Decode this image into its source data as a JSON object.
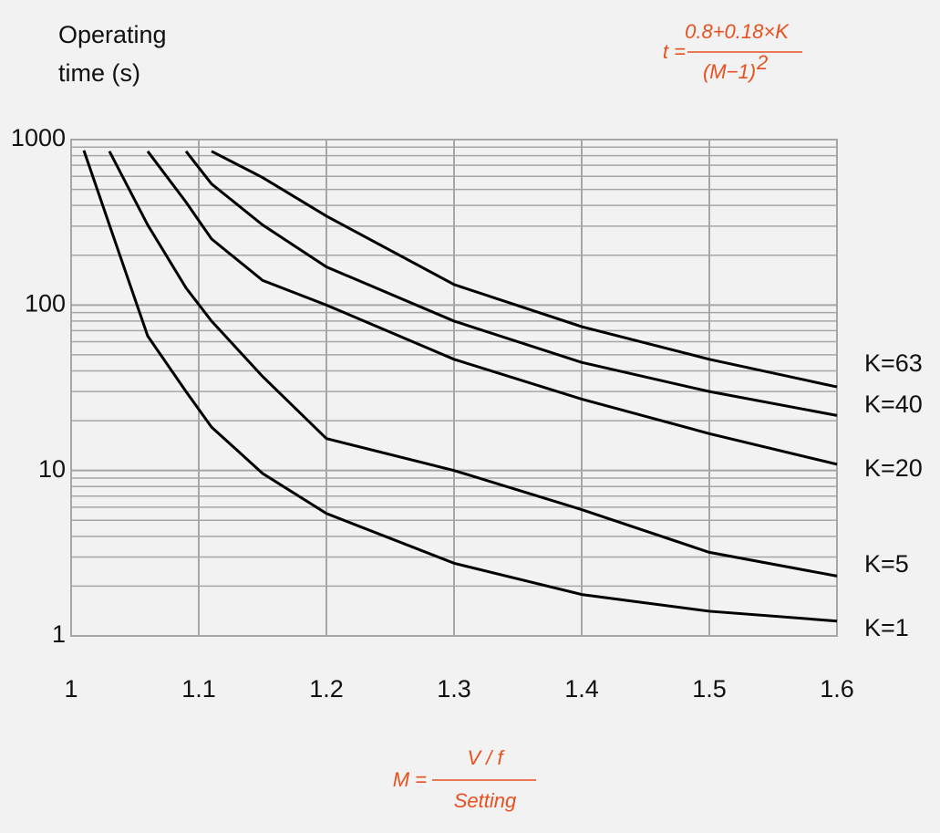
{
  "chart_data": {
    "type": "line",
    "ylabel": [
      "Operating",
      "time (s)"
    ],
    "formula": {
      "lhs": "t =",
      "numerator": "0.8+0.18×K",
      "denominator": "(M−1)",
      "exponent": "2"
    },
    "xlabel": {
      "lhs": "M =",
      "numerator": "V / f",
      "denominator": "Setting"
    },
    "x": [
      1.01,
      1.03,
      1.06,
      1.09,
      1.11,
      1.15,
      1.2,
      1.3,
      1.4,
      1.5,
      1.6
    ],
    "series": [
      {
        "name": "K=63",
        "color": "#000000",
        "values": [
          null,
          null,
          null,
          null,
          850,
          590,
          345,
          133,
          74,
          47,
          32
        ]
      },
      {
        "name": "K=40",
        "color": "#000000",
        "values": [
          null,
          null,
          null,
          850,
          540,
          305,
          170,
          80,
          45,
          30,
          21.5
        ]
      },
      {
        "name": "K=20",
        "color": "#000000",
        "values": [
          null,
          null,
          850,
          419,
          251,
          141,
          100,
          47,
          27,
          16.7,
          10.9
        ]
      },
      {
        "name": "K=5",
        "color": "#000000",
        "values": [
          null,
          850,
          305,
          127,
          80,
          37,
          15.6,
          10,
          5.8,
          3.2,
          2.3
        ]
      },
      {
        "name": "K=1",
        "color": "#000000",
        "values": [
          860,
          305,
          65,
          30,
          18.3,
          9.6,
          5.5,
          2.75,
          1.78,
          1.41,
          1.23
        ]
      }
    ],
    "label_color": "#e8501f",
    "xlim": [
      1,
      1.6
    ],
    "xticks": [
      1,
      1.1,
      1.2,
      1.3,
      1.4,
      1.5,
      1.6
    ],
    "ylim": [
      1,
      1000
    ],
    "yticks": [
      1,
      10,
      100,
      1000
    ],
    "log_y": true,
    "grid": true,
    "minor_grid": true
  }
}
